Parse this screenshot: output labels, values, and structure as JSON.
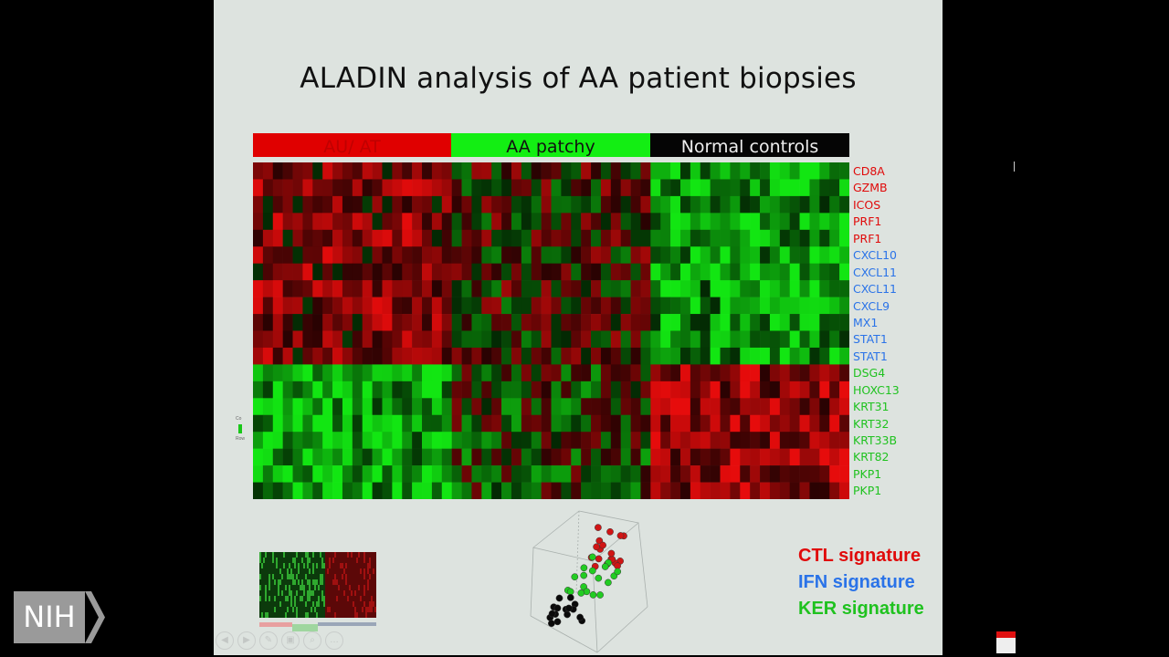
{
  "slide": {
    "title": "ALADIN analysis of AA patient biopsies",
    "group_bar": [
      {
        "label": "AU/ AT",
        "color": "#e00000"
      },
      {
        "label": "AA patchy",
        "color": "#13ee13"
      },
      {
        "label": "Normal controls",
        "color": "#050505"
      }
    ],
    "genes": [
      {
        "name": "CD8A",
        "signature": "CTL"
      },
      {
        "name": "GZMB",
        "signature": "CTL"
      },
      {
        "name": "ICOS",
        "signature": "CTL"
      },
      {
        "name": "PRF1",
        "signature": "CTL"
      },
      {
        "name": "PRF1",
        "signature": "CTL"
      },
      {
        "name": "CXCL10",
        "signature": "IFN"
      },
      {
        "name": "CXCL11",
        "signature": "IFN"
      },
      {
        "name": "CXCL11",
        "signature": "IFN"
      },
      {
        "name": "CXCL9",
        "signature": "IFN"
      },
      {
        "name": "MX1",
        "signature": "IFN"
      },
      {
        "name": "STAT1",
        "signature": "IFN"
      },
      {
        "name": "STAT1",
        "signature": "IFN"
      },
      {
        "name": "DSG4",
        "signature": "KER"
      },
      {
        "name": "HOXC13",
        "signature": "KER"
      },
      {
        "name": "KRT31",
        "signature": "KER"
      },
      {
        "name": "KRT32",
        "signature": "KER"
      },
      {
        "name": "KRT33B",
        "signature": "KER"
      },
      {
        "name": "KRT82",
        "signature": "KER"
      },
      {
        "name": "PKP1",
        "signature": "KER"
      },
      {
        "name": "PKP1",
        "signature": "KER"
      }
    ],
    "signature_colors": {
      "CTL": "#e00a0a",
      "IFN": "#2a73e8",
      "KER": "#1fc21f"
    },
    "legend": {
      "ctl": "CTL signature",
      "ifn": "IFN signature",
      "ker": "KER signature"
    },
    "color_key_text": [
      "Co",
      "Row"
    ]
  },
  "overlay": {
    "logo_text": "NIH",
    "toolbar_icons": [
      "back-icon",
      "forward-icon",
      "pen-icon",
      "slides-icon",
      "zoom-icon",
      "more-icon"
    ],
    "toolbar_glyphs": [
      "◀",
      "▶",
      "✎",
      "▣",
      "⌕",
      "…"
    ]
  }
}
